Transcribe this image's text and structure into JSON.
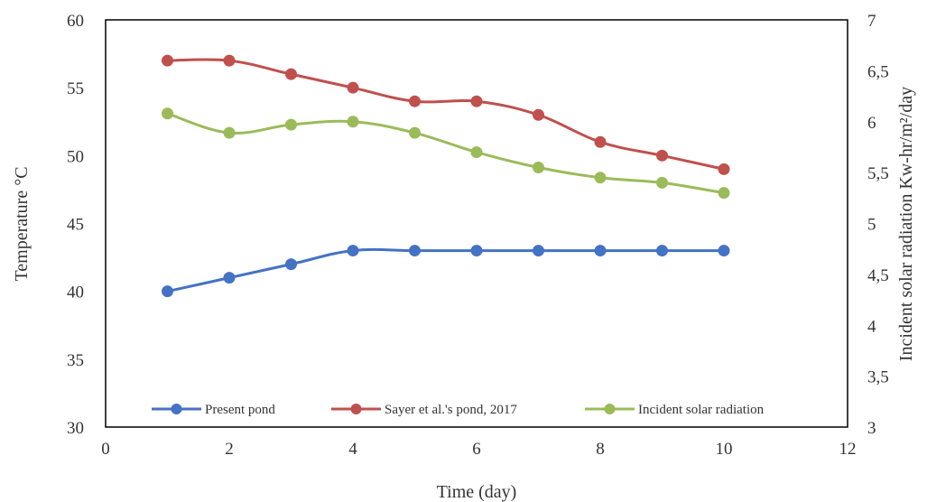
{
  "chart_data": {
    "type": "line",
    "x": [
      1,
      2,
      3,
      4,
      5,
      6,
      7,
      8,
      9,
      10
    ],
    "xlabel": "Time (day)",
    "ylabel": "Temperature  °C",
    "y2label": "Incident solar radiation Kw-hr/m²/day",
    "xlim": [
      0,
      12
    ],
    "ylim": [
      30,
      60
    ],
    "y2lim": [
      3,
      7
    ],
    "x_ticks": [
      0,
      2,
      4,
      6,
      8,
      10,
      12
    ],
    "y_ticks": [
      30,
      35,
      40,
      45,
      50,
      55,
      60
    ],
    "y2_ticks": [
      3,
      3.5,
      4,
      4.5,
      5,
      5.5,
      6,
      6.5,
      7
    ],
    "y2_tick_labels": [
      "3",
      "3,5",
      "4",
      "4,5",
      "5",
      "5,5",
      "6",
      "6,5",
      "7"
    ],
    "grid": false,
    "legend_position": "bottom-inside",
    "series": [
      {
        "name": "Present pond",
        "axis": "left",
        "color": "#4472C4",
        "values": [
          40,
          41,
          42,
          43,
          43,
          43,
          43,
          43,
          43,
          43
        ]
      },
      {
        "name": "Sayer et al.'s pond, 2017",
        "axis": "left",
        "color": "#C0504D",
        "values": [
          57,
          57,
          56,
          55,
          54,
          54,
          53,
          51,
          50,
          49
        ]
      },
      {
        "name": "Incident solar radiation",
        "axis": "right",
        "color": "#9BBB59",
        "values": [
          6.08,
          5.89,
          5.97,
          6.0,
          5.89,
          5.7,
          5.55,
          5.45,
          5.4,
          5.3
        ]
      }
    ]
  }
}
